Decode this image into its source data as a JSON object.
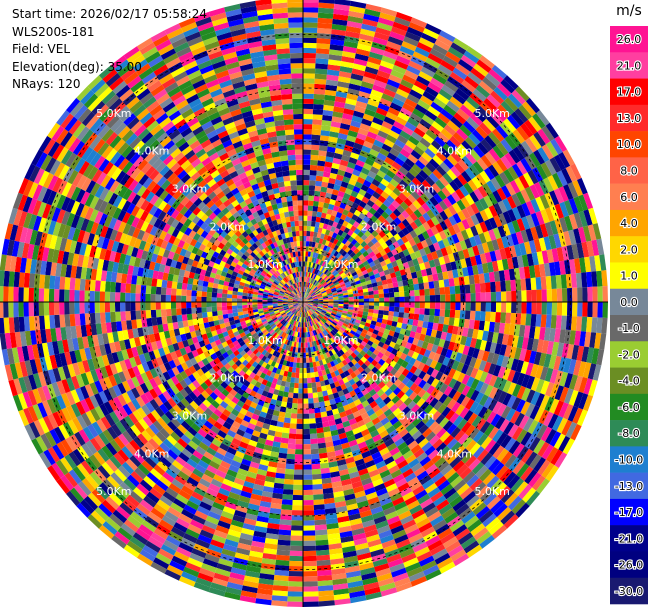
{
  "info": {
    "start_time": "Start time: 2026/02/17 05:58:24",
    "instrument": "WLS200s-181",
    "field": "Field: VEL",
    "elevation": "Elevation(deg): 35.00",
    "nrays": "NRays: 120"
  },
  "chart_data": {
    "type": "heatmap",
    "projection": "polar-ppi",
    "nrays": 120,
    "ngates": 60,
    "field": "VEL",
    "range_rings": [
      "1.0Km",
      "2.0Km",
      "3.0Km",
      "4.0Km",
      "5.0Km"
    ],
    "range_max_km": 5.7,
    "colorbar": {
      "unit": "m/s",
      "ticks": [
        "26.0",
        "21.0",
        "17.0",
        "13.0",
        "10.0",
        "8.0",
        "6.0",
        "4.0",
        "2.0",
        "1.0",
        "0.0",
        "-1.0",
        "-2.0",
        "-4.0",
        "-6.0",
        "-8.0",
        "-10.0",
        "-13.0",
        "-17.0",
        "-21.0",
        "-26.0",
        "-30.0"
      ],
      "colors": [
        "#ff1493",
        "#ff3fa0",
        "#ff0000",
        "#ff2a2a",
        "#ff4500",
        "#ff6347",
        "#ff7f50",
        "#ffa500",
        "#ffd700",
        "#ffff00",
        "#778899",
        "#696969",
        "#9acd32",
        "#6b8e23",
        "#228b22",
        "#2e8b57",
        "#1e7fd0",
        "#4169e1",
        "#0000ff",
        "#00008b",
        "#000080",
        "#191970"
      ]
    }
  }
}
